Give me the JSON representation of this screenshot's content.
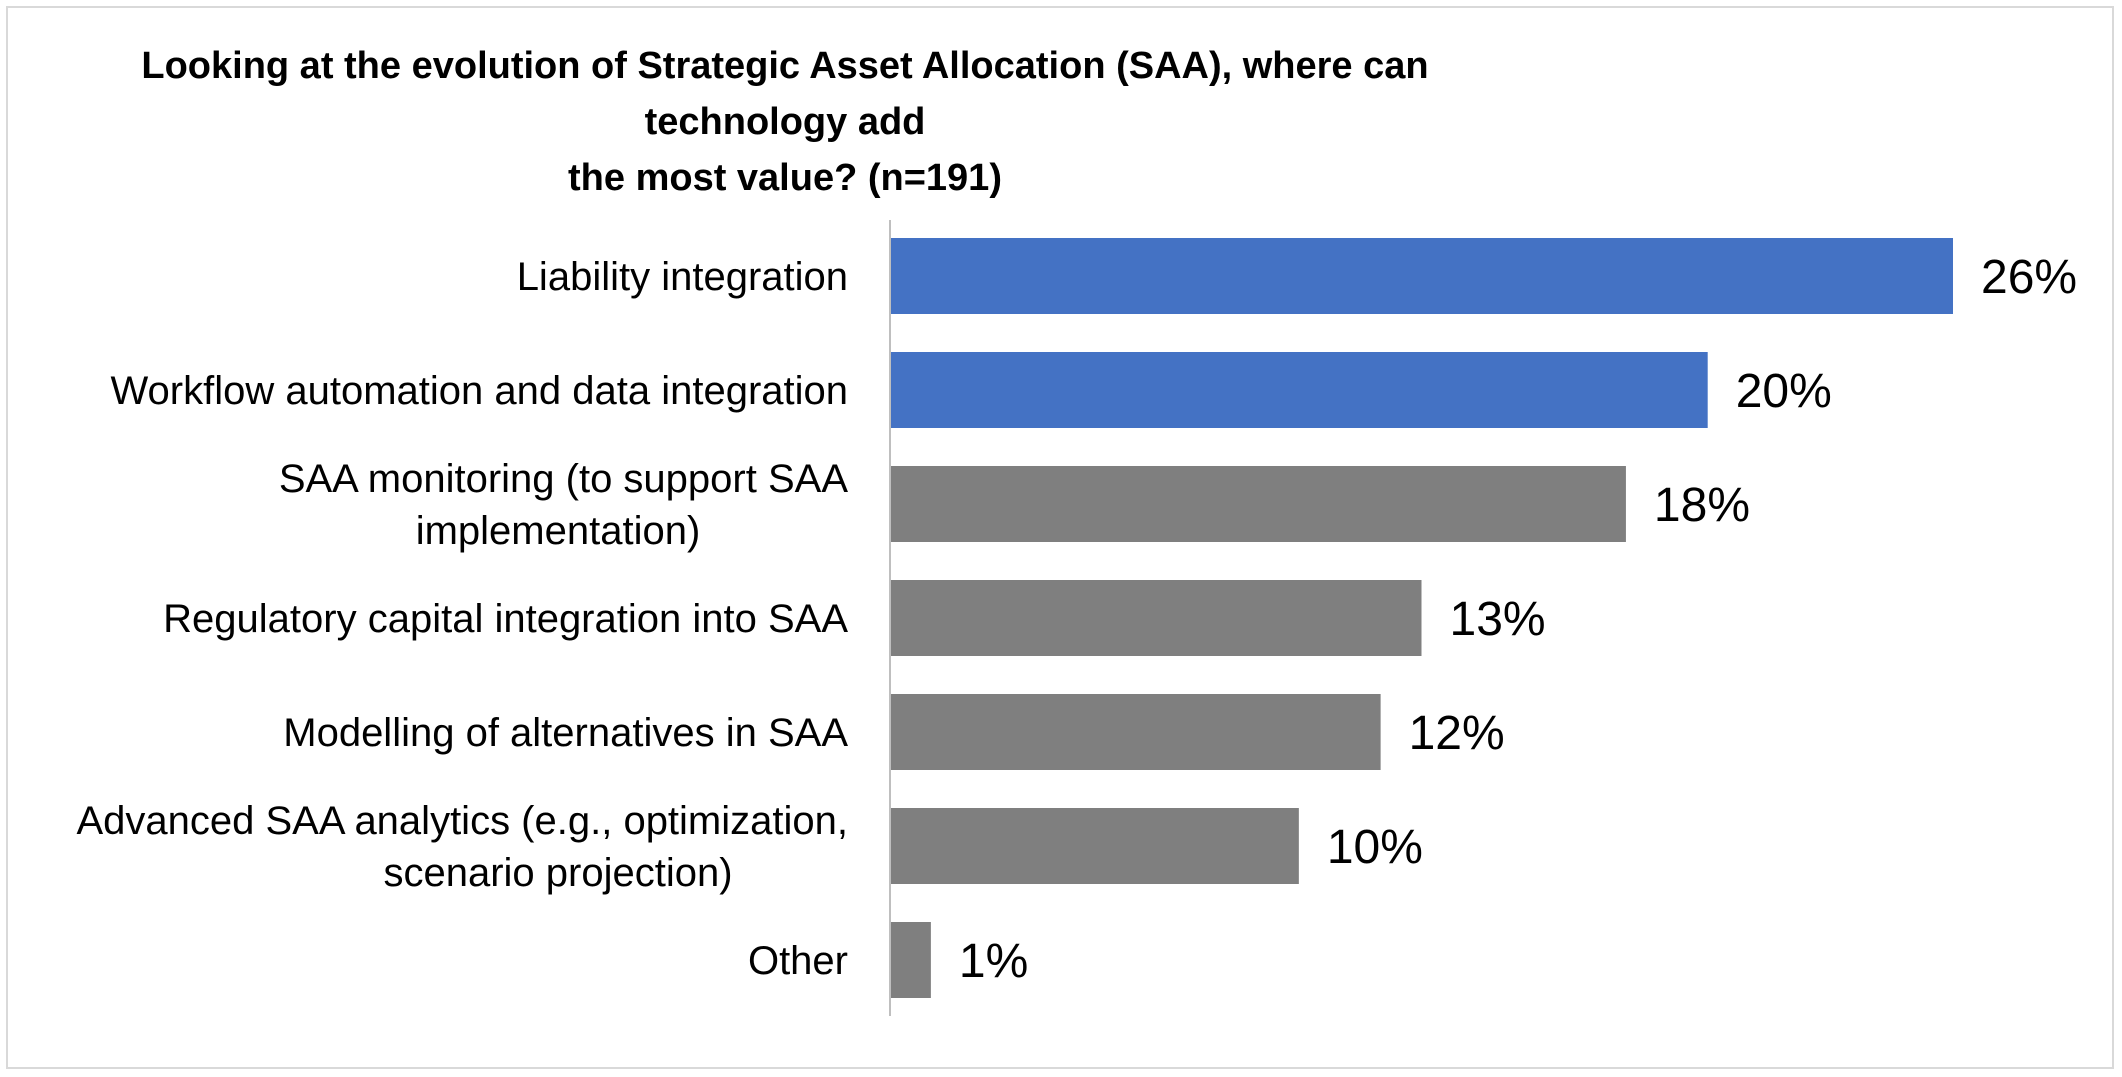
{
  "chart_data": {
    "type": "bar",
    "orientation": "horizontal",
    "title_lines": [
      "Looking at the evolution of Strategic Asset Allocation (SAA), where can technology add",
      "the most value? (n=191)"
    ],
    "categories": [
      [
        "Liability integration"
      ],
      [
        "Workflow automation and data integration"
      ],
      [
        "SAA monitoring (to support SAA",
        "implementation)"
      ],
      [
        "Regulatory capital integration into SAA"
      ],
      [
        "Modelling of alternatives in SAA"
      ],
      [
        "Advanced SAA analytics (e.g., optimization,",
        "scenario projection)"
      ],
      [
        "Other"
      ]
    ],
    "values": [
      26,
      20,
      18,
      13,
      12,
      10,
      1
    ],
    "value_labels": [
      "26%",
      "20%",
      "18%",
      "13%",
      "12%",
      "10%",
      "1%"
    ],
    "unit": "%",
    "highlight_count": 2,
    "colors": {
      "highlight": "#4472C4",
      "default": "#7F7F7F",
      "axis": "#BFBFBF"
    },
    "xlim": [
      0,
      26
    ],
    "grid": false,
    "legend": "none"
  }
}
